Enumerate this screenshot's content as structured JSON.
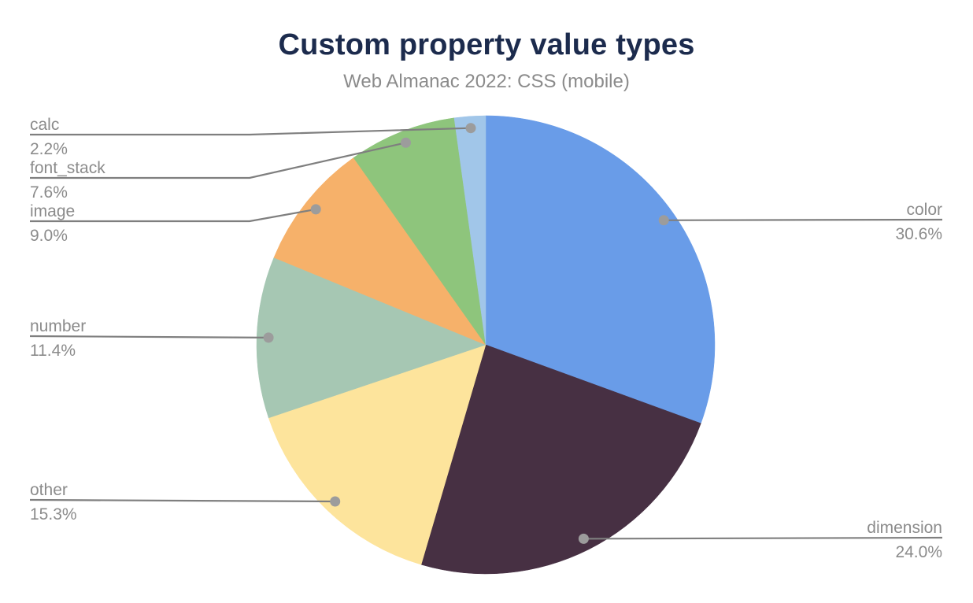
{
  "chart_data": {
    "type": "pie",
    "title": "Custom property value types",
    "subtitle": "Web Almanac 2022: CSS (mobile)",
    "unit": "%",
    "order": "clockwise-from-top",
    "legend_position": "none",
    "labels": "external-leader-lines",
    "segments": [
      {
        "label": "color",
        "value": 30.6,
        "display": "30.6%",
        "color": "#699ce8",
        "label_side": "right"
      },
      {
        "label": "dimension",
        "value": 24.0,
        "display": "24.0%",
        "color": "#473043",
        "label_side": "right"
      },
      {
        "label": "other",
        "value": 15.3,
        "display": "15.3%",
        "color": "#fde49c",
        "label_side": "left"
      },
      {
        "label": "number",
        "value": 11.4,
        "display": "11.4%",
        "color": "#a6c7b3",
        "label_side": "left"
      },
      {
        "label": "image",
        "value": 9.0,
        "display": "9.0%",
        "color": "#f6b16a",
        "label_side": "left"
      },
      {
        "label": "font_stack",
        "value": 7.6,
        "display": "7.6%",
        "color": "#8ec57c",
        "label_side": "left"
      },
      {
        "label": "calc",
        "value": 2.2,
        "display": "2.2%",
        "color": "#a1c6e9",
        "label_side": "left"
      }
    ],
    "colors": {
      "title": "#1c2b4d",
      "subtitle": "#8b8b8b",
      "label_text": "#8b8b8b",
      "leader_line": "#7f7f7f",
      "leader_dot": "#9c9c9c",
      "background": "#ffffff"
    }
  }
}
